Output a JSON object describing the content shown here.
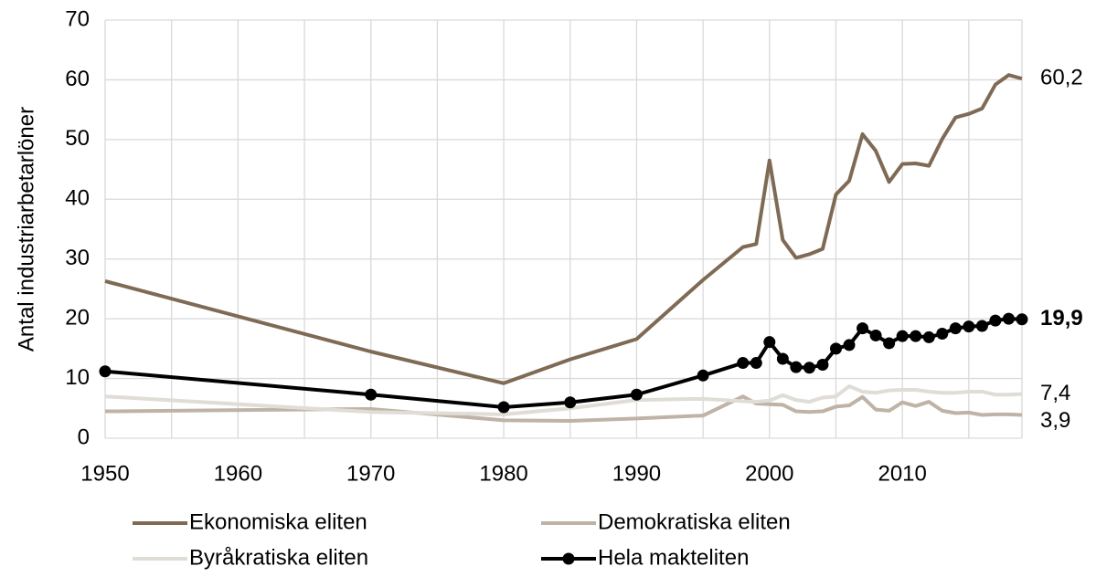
{
  "chart_data": {
    "type": "line",
    "ylabel": "Antal industriarbetarlöner",
    "x": [
      1950,
      1970,
      1980,
      1985,
      1990,
      1995,
      1998,
      1999,
      2000,
      2001,
      2002,
      2003,
      2004,
      2005,
      2006,
      2007,
      2008,
      2009,
      2010,
      2011,
      2012,
      2013,
      2014,
      2015,
      2016,
      2017,
      2018,
      2019
    ],
    "xlim": [
      1950,
      2019
    ],
    "xticks": [
      1950,
      1960,
      1970,
      1980,
      1990,
      2000,
      2010
    ],
    "x_minor_grid": [
      1955,
      1965,
      1975,
      1985,
      1995,
      2005,
      2015
    ],
    "ylim": [
      0,
      70
    ],
    "yticks": [
      0,
      10,
      20,
      30,
      40,
      50,
      60,
      70
    ],
    "grid": true,
    "series": [
      {
        "name": "Ekonomiska eliten",
        "color": "#7f6a55",
        "markers": false,
        "end_label": "60,2",
        "values": [
          26.3,
          14.5,
          9.2,
          13.2,
          16.6,
          26.5,
          32.0,
          32.5,
          46.5,
          33.2,
          30.2,
          30.8,
          31.7,
          40.8,
          43.1,
          50.9,
          48.1,
          42.9,
          45.9,
          46.0,
          45.6,
          50.1,
          53.7,
          54.3,
          55.2,
          59.2,
          60.8,
          60.2
        ]
      },
      {
        "name": "Demokratiska eliten",
        "color": "#bfb3a6",
        "markers": false,
        "end_label": "3,9",
        "values": [
          4.5,
          4.9,
          3.0,
          2.9,
          3.3,
          3.8,
          7.0,
          5.8,
          5.7,
          5.6,
          4.5,
          4.4,
          4.5,
          5.3,
          5.5,
          6.9,
          4.8,
          4.6,
          6.0,
          5.4,
          6.1,
          4.6,
          4.2,
          4.3,
          3.9,
          4.0,
          4.0,
          3.9
        ]
      },
      {
        "name": "Byråkratiska eliten",
        "color": "#e0dcd6",
        "markers": false,
        "end_label": "7,4",
        "values": [
          7.0,
          4.4,
          4.0,
          5.0,
          6.4,
          6.6,
          6.2,
          6.1,
          6.3,
          7.2,
          6.4,
          6.1,
          6.8,
          7.0,
          8.7,
          7.8,
          7.6,
          8.0,
          8.1,
          8.1,
          7.8,
          7.6,
          7.6,
          7.8,
          7.8,
          7.3,
          7.3,
          7.4
        ]
      },
      {
        "name": "Hela makteliten",
        "color": "#000000",
        "markers": true,
        "end_label": "19,9",
        "bold_end_label": true,
        "values": [
          11.2,
          7.3,
          5.2,
          6.0,
          7.3,
          10.5,
          12.6,
          12.6,
          16.1,
          13.3,
          11.9,
          11.8,
          12.3,
          15.0,
          15.6,
          18.4,
          17.2,
          15.9,
          17.1,
          17.1,
          16.9,
          17.5,
          18.4,
          18.7,
          18.8,
          19.7,
          20.0,
          19.9
        ]
      }
    ]
  }
}
